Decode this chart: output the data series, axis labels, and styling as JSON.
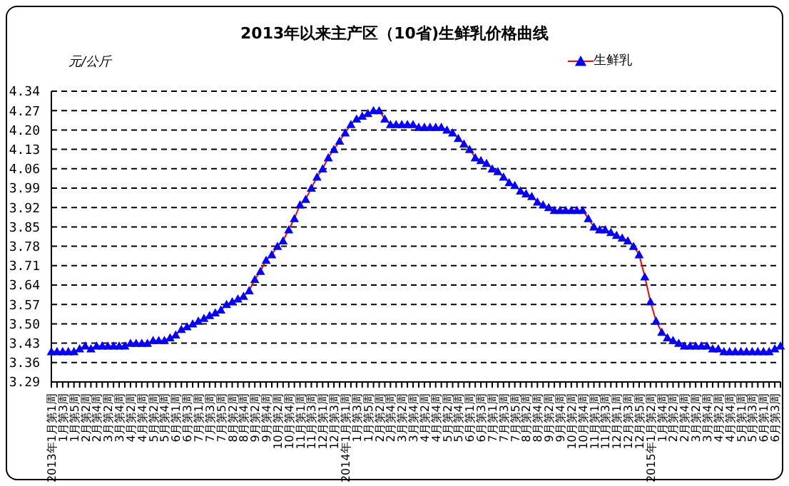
{
  "chart_data": {
    "type": "line",
    "title": "2013年以来主产区（10省)生鲜乳价格曲线",
    "ylabel": "元/公斤",
    "categories": [
      "2013年1月第1周",
      null,
      "1月第3周",
      null,
      "1月第5周",
      null,
      "2月第2周",
      null,
      "2月第4周",
      null,
      "3月第2周",
      null,
      "3月第4周",
      null,
      "4月第2周",
      null,
      "4月第4周",
      null,
      "5月第2周",
      null,
      "5月第4周",
      null,
      "6月第1周",
      null,
      "6月第3周",
      null,
      "7月第1周",
      null,
      "7月第3周",
      null,
      "7月第5周",
      null,
      "8月第2周",
      null,
      "8月第4周",
      null,
      "9月第2周",
      null,
      "9月第4周",
      null,
      "10月第2周",
      null,
      "10月第4周",
      null,
      "11月第1周",
      null,
      "11月第3周",
      null,
      "12月第1周",
      null,
      "12月第3周",
      null,
      "2014年1月第1周",
      null,
      "1月第3周",
      null,
      "1月第5周",
      null,
      "2月第2周",
      null,
      "2月第4周",
      null,
      "3月第2周",
      null,
      "3月第4周",
      null,
      "4月第2周",
      null,
      "4月第4周",
      null,
      "5月第2周",
      null,
      "5月第4周",
      null,
      "6月第1周",
      null,
      "6月第3周",
      null,
      "7月第1周",
      null,
      "7月第3周",
      null,
      "7月第5周",
      null,
      "8月第2周",
      null,
      "8月第4周",
      null,
      "9月第2周",
      null,
      "9月第4周",
      null,
      "10月第2周",
      null,
      "10月第4周",
      null,
      "11月第1周",
      null,
      "11月第3周",
      null,
      "12月第1周",
      null,
      "12月第3周",
      null,
      "12月第5周",
      null,
      "2015年1月第2周",
      null,
      "1月第4周",
      null,
      "2月第2周",
      null,
      "2月第4周",
      null,
      "3月第2周",
      null,
      "3月第4周",
      null,
      "4月第2周",
      null,
      "4月第4周",
      null,
      "5月第1周",
      null,
      "5月第3周",
      null,
      "6月第1周",
      null,
      "6月第3周",
      null
    ],
    "series": [
      {
        "name": "生鲜乳",
        "color": "#0000ff",
        "values": [
          3.4,
          3.4,
          3.4,
          3.4,
          3.4,
          3.41,
          3.42,
          3.41,
          3.42,
          3.42,
          3.42,
          3.42,
          3.42,
          3.42,
          3.43,
          3.43,
          3.43,
          3.43,
          3.44,
          3.44,
          3.44,
          3.45,
          3.46,
          3.48,
          3.49,
          3.5,
          3.51,
          3.52,
          3.53,
          3.54,
          3.55,
          3.57,
          3.58,
          3.59,
          3.6,
          3.62,
          3.66,
          3.69,
          3.73,
          3.75,
          3.78,
          3.8,
          3.84,
          3.88,
          3.93,
          3.95,
          3.99,
          4.03,
          4.06,
          4.1,
          4.13,
          4.16,
          4.19,
          4.22,
          4.24,
          4.25,
          4.26,
          4.27,
          4.27,
          4.24,
          4.22,
          4.22,
          4.22,
          4.22,
          4.22,
          4.21,
          4.21,
          4.21,
          4.21,
          4.21,
          4.2,
          4.19,
          4.17,
          4.15,
          4.13,
          4.1,
          4.09,
          4.08,
          4.06,
          4.05,
          4.03,
          4.01,
          4.0,
          3.98,
          3.97,
          3.96,
          3.94,
          3.93,
          3.92,
          3.91,
          3.91,
          3.91,
          3.91,
          3.91,
          3.91,
          3.88,
          3.85,
          3.84,
          3.84,
          3.83,
          3.82,
          3.81,
          3.8,
          3.78,
          3.75,
          3.67,
          3.58,
          3.51,
          3.47,
          3.45,
          3.44,
          3.43,
          3.42,
          3.42,
          3.42,
          3.42,
          3.42,
          3.41,
          3.41,
          3.4,
          3.4,
          3.4,
          3.4,
          3.4,
          3.4,
          3.4,
          3.4,
          3.4,
          3.41,
          3.42
        ]
      }
    ],
    "ylim": [
      3.29,
      4.34
    ],
    "yticks": [
      3.29,
      3.36,
      3.43,
      {
        "value": 3.5,
        "label": "3.50"
      },
      3.57,
      3.64,
      3.71,
      3.78,
      3.85,
      3.92,
      3.99,
      4.06,
      4.13,
      {
        "value": 4.2,
        "label": "4.20"
      },
      4.27,
      4.34
    ],
    "grid": "y",
    "legend": "top right",
    "marker": "triangle",
    "line_style": "solid"
  }
}
